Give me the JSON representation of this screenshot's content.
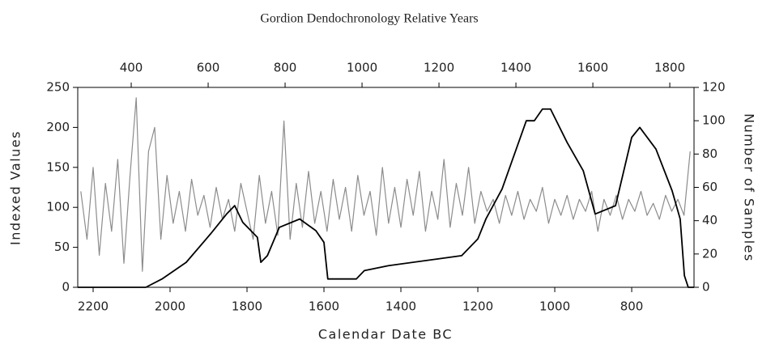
{
  "chart_data": {
    "type": "line",
    "title": "Gordion Dendochronology Relative Years",
    "xlabel": "Calendar Date BC",
    "ylabel": "Indexed Values",
    "y2label": "Number of Samples",
    "xlim": [
      2240,
      638
    ],
    "xticks": [
      2200,
      2000,
      1800,
      1600,
      1400,
      1200,
      1000,
      800
    ],
    "x2lim": [
      261,
      1863
    ],
    "x2ticks": [
      400,
      600,
      800,
      1000,
      1200,
      1400,
      1600,
      1800
    ],
    "ylim": [
      0,
      250
    ],
    "yticks": [
      0,
      50,
      100,
      150,
      200,
      250
    ],
    "y2lim": [
      0,
      120
    ],
    "y2ticks": [
      0,
      20,
      40,
      60,
      80,
      100,
      120
    ],
    "series": [
      {
        "color": "#8c8c8c",
        "axis": "y",
        "x": [
          2232,
          2216,
          2200,
          2184,
          2168,
          2152,
          2136,
          2120,
          2104,
          2088,
          2072,
          2056,
          2040,
          2024,
          2008,
          1992,
          1976,
          1960,
          1944,
          1928,
          1912,
          1896,
          1880,
          1864,
          1848,
          1832,
          1816,
          1800,
          1784,
          1768,
          1752,
          1736,
          1720,
          1704,
          1688,
          1672,
          1656,
          1640,
          1624,
          1608,
          1592,
          1576,
          1560,
          1544,
          1528,
          1512,
          1496,
          1480,
          1464,
          1448,
          1432,
          1416,
          1400,
          1384,
          1368,
          1352,
          1336,
          1320,
          1304,
          1288,
          1272,
          1256,
          1240,
          1224,
          1208,
          1192,
          1176,
          1160,
          1144,
          1128,
          1112,
          1096,
          1080,
          1064,
          1048,
          1032,
          1016,
          1000,
          984,
          968,
          952,
          936,
          920,
          904,
          888,
          872,
          856,
          840,
          824,
          808,
          792,
          776,
          760,
          744,
          728,
          712,
          696,
          680,
          664,
          648
        ],
        "values": [
          120,
          60,
          150,
          40,
          130,
          70,
          160,
          30,
          140,
          237,
          20,
          170,
          200,
          60,
          140,
          80,
          120,
          70,
          135,
          90,
          115,
          75,
          125,
          85,
          110,
          70,
          130,
          95,
          60,
          140,
          80,
          120,
          65,
          208,
          60,
          130,
          75,
          145,
          80,
          120,
          70,
          135,
          85,
          125,
          70,
          140,
          90,
          120,
          65,
          150,
          80,
          125,
          75,
          135,
          90,
          145,
          70,
          120,
          85,
          160,
          75,
          130,
          90,
          150,
          80,
          120,
          95,
          110,
          80,
          115,
          90,
          120,
          85,
          110,
          95,
          125,
          80,
          110,
          90,
          115,
          85,
          110,
          95,
          120,
          70,
          110,
          90,
          115,
          85,
          110,
          95,
          120,
          90,
          105,
          85,
          115,
          95,
          110,
          90,
          170
        ]
      },
      {
        "color": "#000000",
        "axis": "y2",
        "x": [
          2240,
          2063,
          2021,
          1958,
          1895,
          1853,
          1832,
          1811,
          1773,
          1764,
          1747,
          1716,
          1663,
          1621,
          1600,
          1590,
          1516,
          1495,
          1432,
          1305,
          1242,
          1200,
          1179,
          1137,
          1074,
          1053,
          1032,
          1011,
          968,
          926,
          895,
          842,
          800,
          779,
          737,
          695,
          674,
          663,
          653,
          638
        ],
        "values": [
          0,
          0,
          5,
          15,
          32,
          44,
          49,
          39,
          30,
          15,
          19,
          36,
          41,
          34,
          27,
          5,
          5,
          10,
          13,
          17,
          19,
          29,
          41,
          59,
          100,
          100,
          107,
          107,
          87,
          70,
          44,
          49,
          90,
          96,
          83,
          58,
          41,
          7,
          0,
          0
        ]
      }
    ]
  }
}
